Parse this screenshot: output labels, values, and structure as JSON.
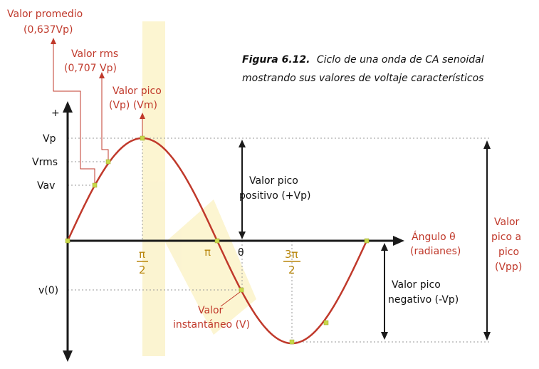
{
  "caption": {
    "bold": "Figura 6.12.",
    "line1": "Ciclo de una onda de CA senoidal",
    "line2": "mostrando sus valores de voltaje característicos"
  },
  "annotations": {
    "promedio_line1": "Valor promedio",
    "promedio_line2": "(0,637Vp)",
    "rms_line1": "Valor rms",
    "rms_line2": "(0,707 Vp)",
    "pico_line1": "Valor pico",
    "pico_line2": "(Vp) (Vm)",
    "instantaneo_line1": "Valor",
    "instantaneo_line2": "instantáneo (V)"
  },
  "y_labels": {
    "plus": "+",
    "vp": "Vp",
    "vrms": "Vrms",
    "vav": "Vav",
    "v0": "v(0)"
  },
  "x_labels": {
    "pi_half_num": "π",
    "pi_half_den": "2",
    "pi": "π",
    "theta": "θ",
    "three_pi_half_num": "3π",
    "three_pi_half_den": "2",
    "angle_line1": "Ángulo θ",
    "angle_line2": "(radianes)"
  },
  "right_labels": {
    "pos_line1": "Valor pico",
    "pos_line2": "positivo (+Vp)",
    "neg_line1": "Valor pico",
    "neg_line2": "negativo (-Vp)",
    "pp_line1": "Valor",
    "pp_line2": "pico a",
    "pp_line3": "pico",
    "pp_line4": "(Vpp)"
  },
  "colors": {
    "wave": "#c0392b",
    "axis": "#1a1a1a",
    "marker": "#c8d84a",
    "guide": "#777777",
    "watermark": "#fbf3c9"
  }
}
